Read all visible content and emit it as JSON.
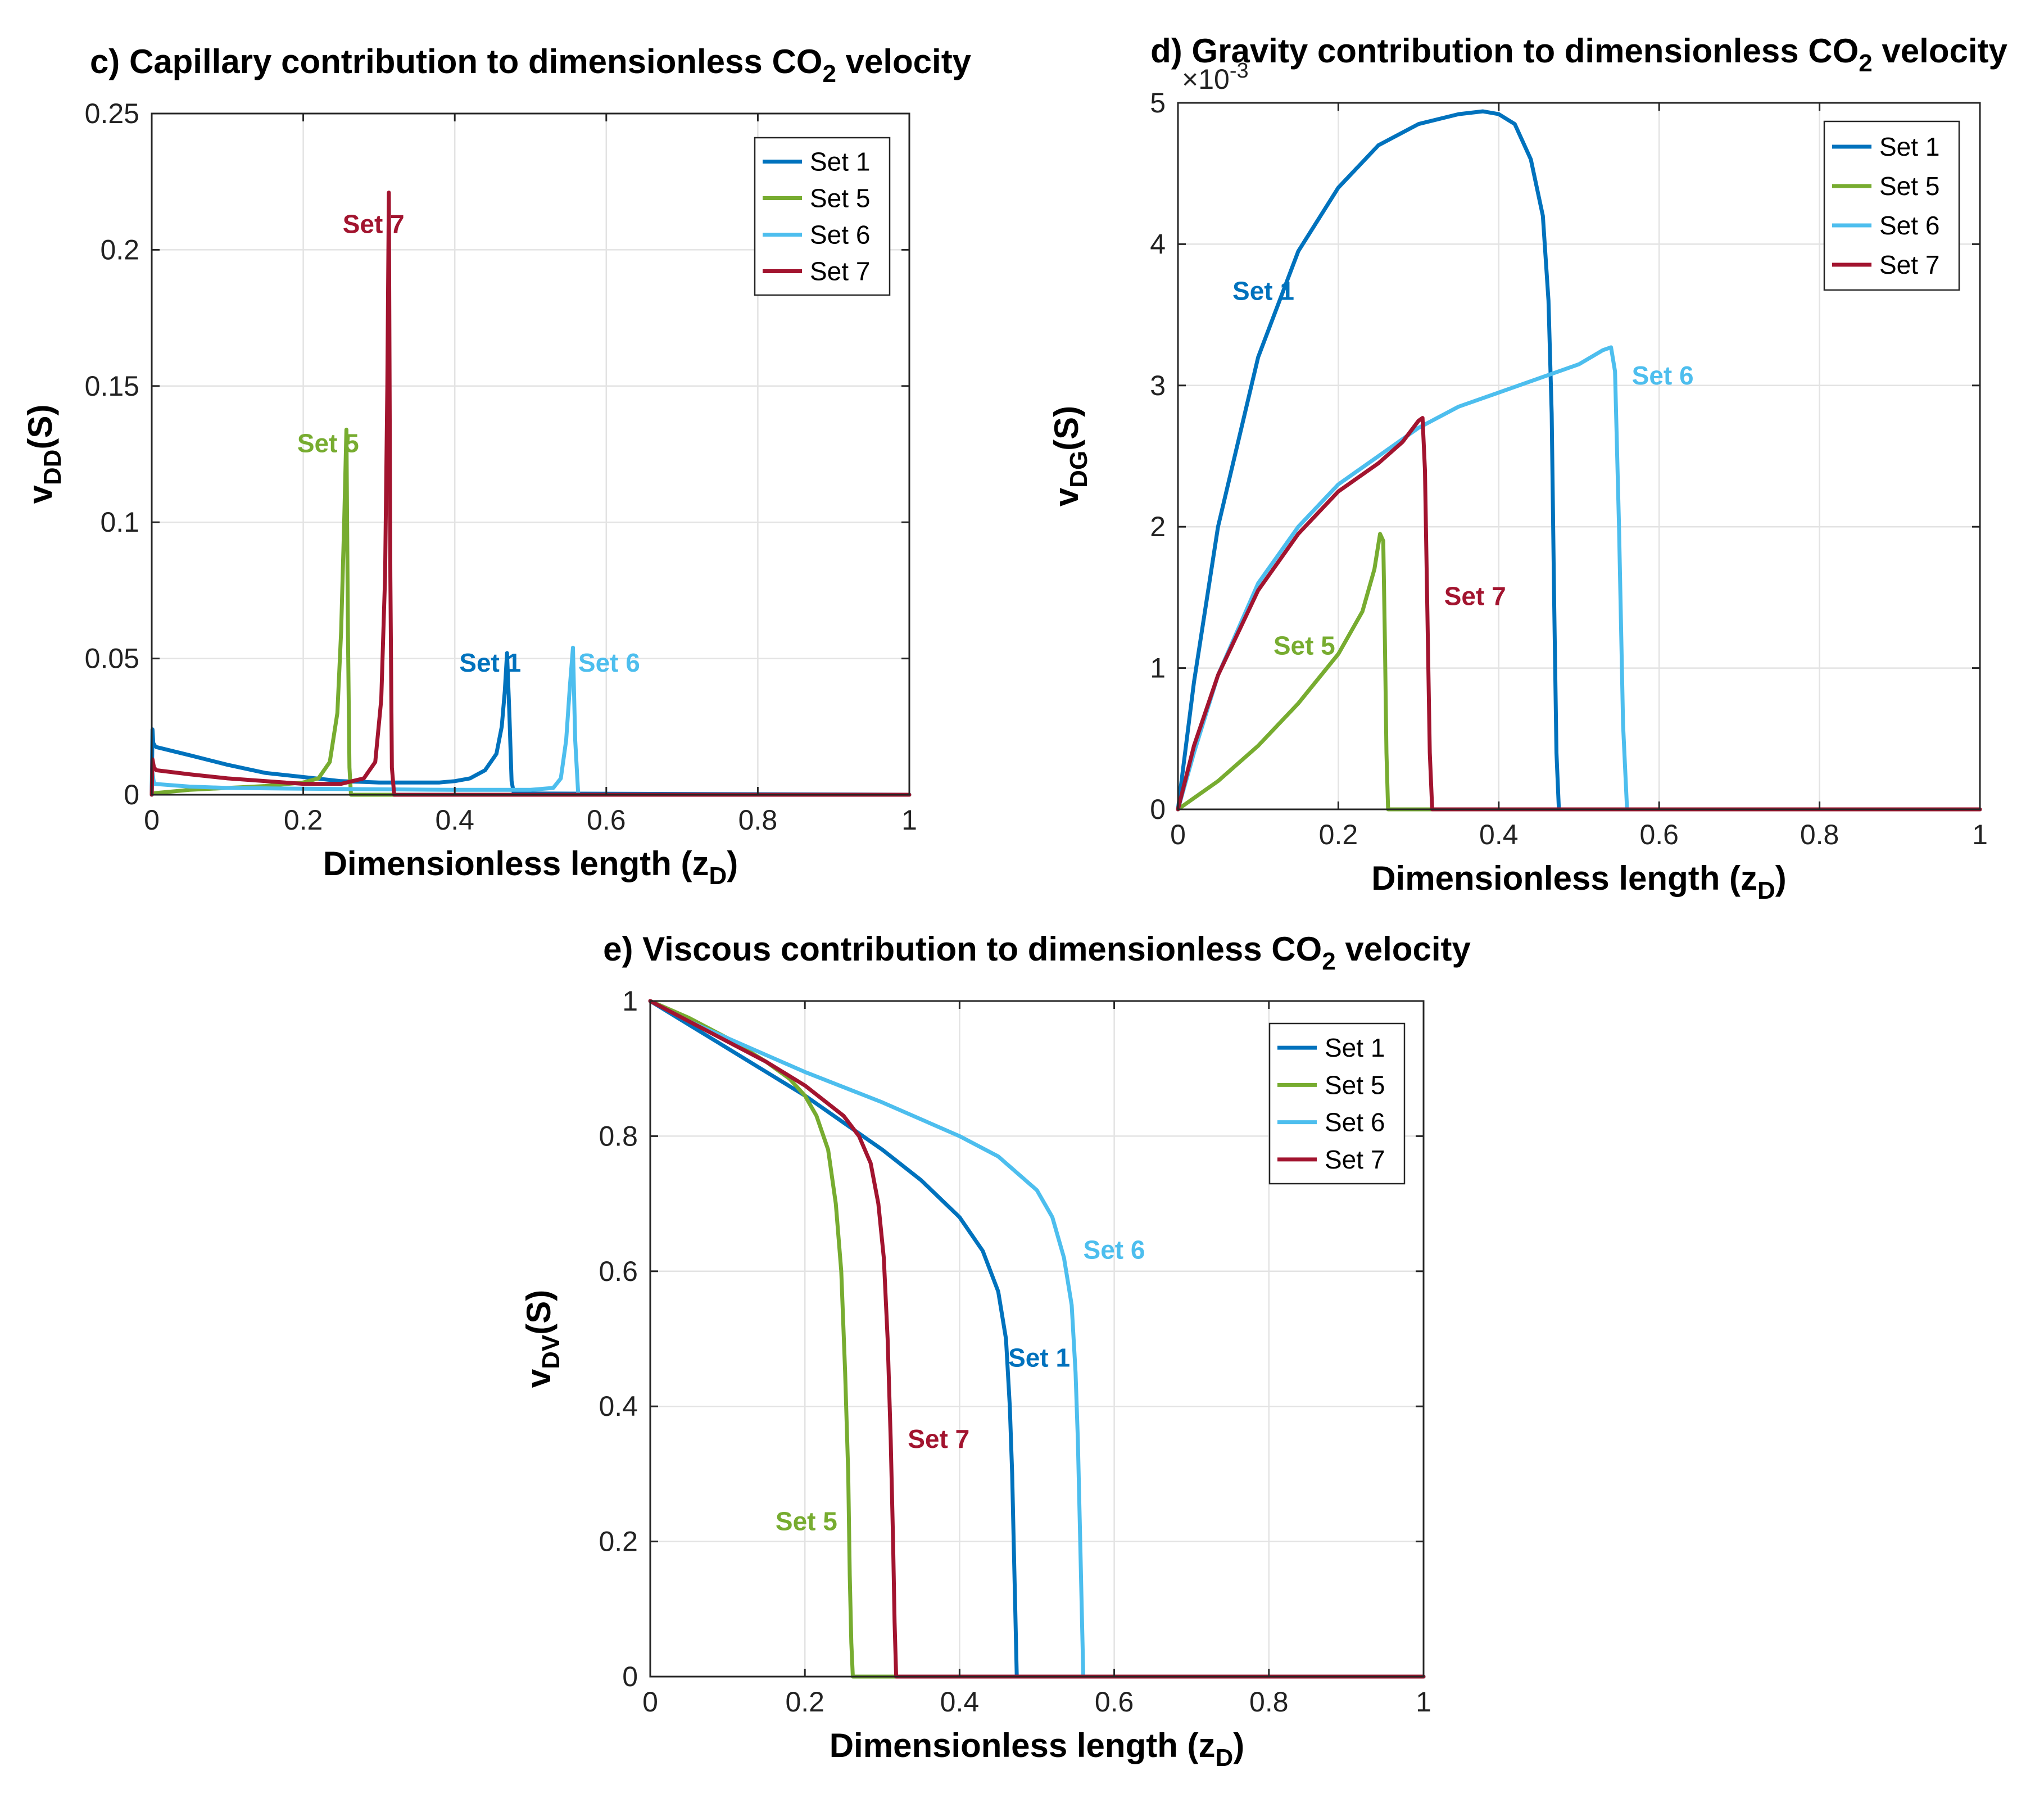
{
  "colors": {
    "set1": "#0072bd",
    "set5": "#77ac30",
    "set6": "#4dbeee",
    "set7": "#a2142f"
  },
  "chart_data": [
    {
      "id": "c",
      "type": "line",
      "title_parts": [
        "c) Capillary contribution to dimensionless CO",
        "2",
        " velocity"
      ],
      "xlabel_parts": [
        "Dimensionless length (z",
        "D",
        ")"
      ],
      "ylabel_parts": [
        "v",
        "DD",
        "(S)"
      ],
      "xlim": [
        0,
        1
      ],
      "ylim": [
        0,
        0.25
      ],
      "xticks": [
        0,
        0.2,
        0.4,
        0.6,
        0.8,
        1
      ],
      "xtick_labels": [
        "0",
        "0.2",
        "0.4",
        "0.6",
        "0.8",
        "1"
      ],
      "yticks": [
        0,
        0.05,
        0.1,
        0.15,
        0.2,
        0.25
      ],
      "ytick_labels": [
        "0",
        "0.05",
        "0.1",
        "0.15",
        "0.2",
        "0.25"
      ],
      "exponent_label": "",
      "grid": true,
      "legend_position": "top-right",
      "legend": [
        "Set 1",
        "Set 5",
        "Set 6",
        "Set 7"
      ],
      "series": [
        {
          "name": "Set 1",
          "color_key": "set1",
          "x": [
            0,
            0.001,
            0.002,
            0.004,
            0.006,
            0.05,
            0.1,
            0.15,
            0.2,
            0.25,
            0.3,
            0.35,
            0.38,
            0.4,
            0.42,
            0.44,
            0.455,
            0.462,
            0.466,
            0.469,
            0.472,
            0.475,
            0.478,
            1.0
          ],
          "y": [
            0,
            0.024,
            0.019,
            0.018,
            0.0175,
            0.0145,
            0.011,
            0.008,
            0.0065,
            0.005,
            0.0045,
            0.0045,
            0.0045,
            0.005,
            0.006,
            0.009,
            0.015,
            0.025,
            0.038,
            0.052,
            0.03,
            0.005,
            0.0005,
            0
          ]
        },
        {
          "name": "Set 5",
          "color_key": "set5",
          "x": [
            0,
            0.05,
            0.1,
            0.15,
            0.2,
            0.22,
            0.235,
            0.245,
            0.25,
            0.254,
            0.257,
            0.259,
            0.261,
            0.263,
            1.0
          ],
          "y": [
            0.0005,
            0.0018,
            0.0025,
            0.0032,
            0.0045,
            0.006,
            0.012,
            0.03,
            0.06,
            0.1,
            0.134,
            0.06,
            0.01,
            0,
            0
          ]
        },
        {
          "name": "Set 6",
          "color_key": "set6",
          "x": [
            0,
            0.001,
            0.003,
            0.05,
            0.1,
            0.2,
            0.3,
            0.4,
            0.5,
            0.53,
            0.54,
            0.547,
            0.552,
            0.556,
            0.559,
            0.563,
            1.0
          ],
          "y": [
            0,
            0.008,
            0.004,
            0.003,
            0.0025,
            0.0022,
            0.002,
            0.0018,
            0.0018,
            0.0025,
            0.006,
            0.02,
            0.04,
            0.054,
            0.02,
            0,
            0
          ]
        },
        {
          "name": "Set 7",
          "color_key": "set7",
          "x": [
            0,
            0.001,
            0.003,
            0.006,
            0.05,
            0.1,
            0.15,
            0.2,
            0.25,
            0.28,
            0.295,
            0.303,
            0.308,
            0.311,
            0.313,
            0.315,
            0.317,
            0.32,
            1.0
          ],
          "y": [
            0,
            0.013,
            0.01,
            0.009,
            0.0075,
            0.006,
            0.005,
            0.004,
            0.004,
            0.006,
            0.012,
            0.035,
            0.08,
            0.15,
            0.221,
            0.08,
            0.01,
            0,
            0
          ]
        }
      ],
      "annotations": [
        {
          "text": "Set 7",
          "color_key": "set7",
          "x": 0.252,
          "y": 0.2095
        },
        {
          "text": "Set 5",
          "color_key": "set5",
          "x": 0.192,
          "y": 0.129
        },
        {
          "text": "Set 1",
          "color_key": "set1",
          "x": 0.406,
          "y": 0.0485
        },
        {
          "text": "Set 6",
          "color_key": "set6",
          "x": 0.563,
          "y": 0.0485
        }
      ]
    },
    {
      "id": "d",
      "type": "line",
      "title_parts": [
        "d) Gravity contribution to dimensionless CO",
        "2",
        " velocity"
      ],
      "xlabel_parts": [
        "Dimensionless length (z",
        "D",
        ")"
      ],
      "ylabel_parts": [
        "v",
        "DG",
        "(S)"
      ],
      "xlim": [
        0,
        1
      ],
      "ylim": [
        0,
        5
      ],
      "xticks": [
        0,
        0.2,
        0.4,
        0.6,
        0.8,
        1
      ],
      "xtick_labels": [
        "0",
        "0.2",
        "0.4",
        "0.6",
        "0.8",
        "1"
      ],
      "yticks": [
        0,
        1,
        2,
        3,
        4,
        5
      ],
      "ytick_labels": [
        "0",
        "1",
        "2",
        "3",
        "4",
        "5"
      ],
      "exponent_label": "×10",
      "exponent_power": "-3",
      "grid": true,
      "legend_position": "top-right",
      "legend": [
        "Set 1",
        "Set 5",
        "Set 6",
        "Set 7"
      ],
      "series": [
        {
          "name": "Set 1",
          "color_key": "set1",
          "x": [
            0,
            0.02,
            0.05,
            0.1,
            0.15,
            0.2,
            0.25,
            0.3,
            0.35,
            0.38,
            0.4,
            0.42,
            0.44,
            0.455,
            0.462,
            0.466,
            0.469,
            0.472,
            0.475,
            1.0
          ],
          "y": [
            0,
            0.9,
            2.0,
            3.2,
            3.95,
            4.4,
            4.7,
            4.85,
            4.92,
            4.94,
            4.92,
            4.85,
            4.6,
            4.2,
            3.6,
            2.8,
            1.5,
            0.4,
            0,
            0
          ]
        },
        {
          "name": "Set 5",
          "color_key": "set5",
          "x": [
            0,
            0.05,
            0.1,
            0.15,
            0.2,
            0.23,
            0.245,
            0.252,
            0.256,
            0.258,
            0.26,
            0.262,
            1.0
          ],
          "y": [
            0,
            0.2,
            0.45,
            0.75,
            1.1,
            1.4,
            1.7,
            1.95,
            1.9,
            1.2,
            0.4,
            0,
            0
          ]
        },
        {
          "name": "Set 6",
          "color_key": "set6",
          "x": [
            0,
            0.02,
            0.05,
            0.1,
            0.15,
            0.2,
            0.25,
            0.3,
            0.35,
            0.4,
            0.45,
            0.5,
            0.53,
            0.54,
            0.545,
            0.55,
            0.555,
            0.56,
            1.0
          ],
          "y": [
            0,
            0.4,
            0.95,
            1.6,
            2.0,
            2.3,
            2.5,
            2.7,
            2.85,
            2.95,
            3.05,
            3.15,
            3.25,
            3.27,
            3.1,
            2.0,
            0.6,
            0,
            0
          ]
        },
        {
          "name": "Set 7",
          "color_key": "set7",
          "x": [
            0,
            0.02,
            0.05,
            0.1,
            0.15,
            0.2,
            0.25,
            0.28,
            0.3,
            0.305,
            0.308,
            0.311,
            0.314,
            0.317,
            1.0
          ],
          "y": [
            0,
            0.45,
            0.95,
            1.55,
            1.95,
            2.25,
            2.45,
            2.6,
            2.75,
            2.77,
            2.4,
            1.4,
            0.4,
            0,
            0
          ]
        }
      ],
      "annotations": [
        {
          "text": "Set 1",
          "color_key": "set1",
          "x": 0.068,
          "y": 3.67
        },
        {
          "text": "Set 6",
          "color_key": "set6",
          "x": 0.566,
          "y": 3.07
        },
        {
          "text": "Set 7",
          "color_key": "set7",
          "x": 0.332,
          "y": 1.51
        },
        {
          "text": "Set 5",
          "color_key": "set5",
          "x": 0.119,
          "y": 1.16
        }
      ]
    },
    {
      "id": "e",
      "type": "line",
      "title_parts": [
        "e) Viscous contribution to dimensionless CO",
        "2",
        " velocity"
      ],
      "xlabel_parts": [
        "Dimensionless length (z",
        "D",
        ")"
      ],
      "ylabel_parts": [
        "v",
        "DV",
        "(S)"
      ],
      "xlim": [
        0,
        1
      ],
      "ylim": [
        0,
        1
      ],
      "xticks": [
        0,
        0.2,
        0.4,
        0.6,
        0.8,
        1
      ],
      "xtick_labels": [
        "0",
        "0.2",
        "0.4",
        "0.6",
        "0.8",
        "1"
      ],
      "yticks": [
        0,
        0.2,
        0.4,
        0.6,
        0.8,
        1
      ],
      "ytick_labels": [
        "0",
        "0.2",
        "0.4",
        "0.6",
        "0.8",
        "1"
      ],
      "exponent_label": "",
      "grid": true,
      "legend_position": "top-right",
      "legend": [
        "Set 1",
        "Set 5",
        "Set 6",
        "Set 7"
      ],
      "series": [
        {
          "name": "Set 1",
          "color_key": "set1",
          "x": [
            0,
            0.05,
            0.1,
            0.15,
            0.2,
            0.25,
            0.3,
            0.35,
            0.4,
            0.43,
            0.45,
            0.46,
            0.465,
            0.468,
            0.47,
            0.472,
            0.474,
            1.0
          ],
          "y": [
            1,
            0.965,
            0.93,
            0.895,
            0.86,
            0.82,
            0.78,
            0.735,
            0.68,
            0.63,
            0.57,
            0.5,
            0.4,
            0.3,
            0.2,
            0.1,
            0,
            0
          ]
        },
        {
          "name": "Set 5",
          "color_key": "set5",
          "x": [
            0,
            0.05,
            0.1,
            0.15,
            0.18,
            0.2,
            0.215,
            0.23,
            0.24,
            0.247,
            0.252,
            0.256,
            0.258,
            0.26,
            0.262,
            1.0
          ],
          "y": [
            1,
            0.975,
            0.945,
            0.91,
            0.885,
            0.86,
            0.83,
            0.78,
            0.7,
            0.6,
            0.45,
            0.3,
            0.15,
            0.05,
            0,
            0
          ]
        },
        {
          "name": "Set 6",
          "color_key": "set6",
          "x": [
            0,
            0.05,
            0.1,
            0.2,
            0.3,
            0.4,
            0.45,
            0.5,
            0.52,
            0.535,
            0.545,
            0.55,
            0.553,
            0.556,
            0.558,
            0.56,
            1.0
          ],
          "y": [
            1,
            0.97,
            0.945,
            0.895,
            0.85,
            0.8,
            0.77,
            0.72,
            0.68,
            0.62,
            0.55,
            0.45,
            0.35,
            0.2,
            0.1,
            0,
            0
          ]
        },
        {
          "name": "Set 7",
          "color_key": "set7",
          "x": [
            0,
            0.05,
            0.1,
            0.15,
            0.2,
            0.25,
            0.27,
            0.285,
            0.295,
            0.302,
            0.307,
            0.311,
            0.314,
            0.316,
            0.318,
            1.0
          ],
          "y": [
            1,
            0.97,
            0.94,
            0.91,
            0.875,
            0.83,
            0.8,
            0.76,
            0.7,
            0.62,
            0.5,
            0.35,
            0.2,
            0.08,
            0,
            0
          ]
        }
      ],
      "annotations": [
        {
          "text": "Set 6",
          "color_key": "set6",
          "x": 0.56,
          "y": 0.632
        },
        {
          "text": "Set 1",
          "color_key": "set1",
          "x": 0.463,
          "y": 0.472
        },
        {
          "text": "Set 7",
          "color_key": "set7",
          "x": 0.333,
          "y": 0.352
        },
        {
          "text": "Set 5",
          "color_key": "set5",
          "x": 0.162,
          "y": 0.23
        }
      ]
    }
  ]
}
